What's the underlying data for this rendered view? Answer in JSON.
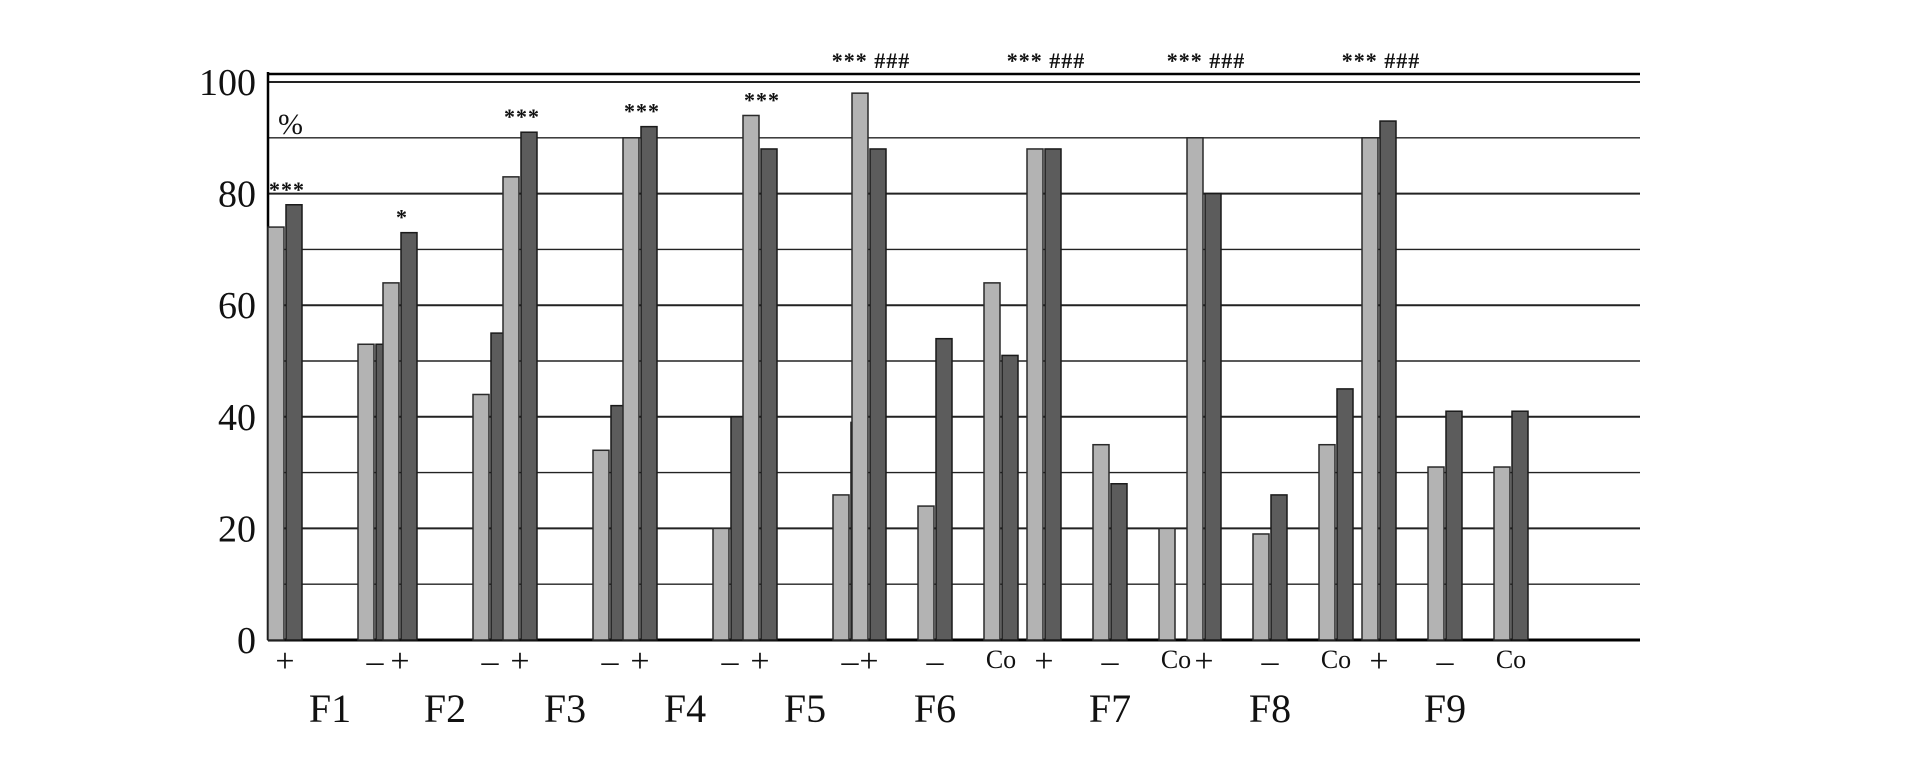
{
  "chart_data": {
    "type": "bar",
    "title": "",
    "xlabel": "",
    "ylabel": "%",
    "ylim": [
      0,
      100
    ],
    "yticks": [
      "0",
      "20",
      "40",
      "60",
      "80",
      "100"
    ],
    "colors": {
      "light": "#b3b3b3",
      "dark": "#5c5c5c",
      "axis": "#000000",
      "grid": "#222222"
    },
    "groups": [
      {
        "name": "F1",
        "bars": [
          {
            "label": "+",
            "light": 74,
            "dark": 78,
            "sig": "***"
          },
          {
            "label": "–",
            "light": 53,
            "dark": 53,
            "sig": ""
          }
        ]
      },
      {
        "name": "F2",
        "bars": [
          {
            "label": "+",
            "light": 64,
            "dark": 73,
            "sig": "*"
          },
          {
            "label": "–",
            "light": 44,
            "dark": 55,
            "sig": ""
          }
        ]
      },
      {
        "name": "F3",
        "bars": [
          {
            "label": "+",
            "light": 83,
            "dark": 91,
            "sig": "***"
          },
          {
            "label": "–",
            "light": 34,
            "dark": 42,
            "sig": ""
          }
        ]
      },
      {
        "name": "F4",
        "bars": [
          {
            "label": "+",
            "light": 90,
            "dark": 92,
            "sig": "***"
          },
          {
            "label": "–",
            "light": 20,
            "dark": 40,
            "sig": ""
          }
        ]
      },
      {
        "name": "F5",
        "bars": [
          {
            "label": "+",
            "light": 94,
            "dark": 88,
            "sig": "***"
          },
          {
            "label": "–",
            "light": 26,
            "dark": 39,
            "sig": ""
          }
        ]
      },
      {
        "name": "F6",
        "bars": [
          {
            "label": "+",
            "light": 98,
            "dark": 88,
            "sig": "*** ###"
          },
          {
            "label": "–",
            "light": 24,
            "dark": 54,
            "sig": ""
          },
          {
            "label": "Co",
            "light": 64,
            "dark": 51,
            "sig": ""
          }
        ]
      },
      {
        "name": "F7",
        "bars": [
          {
            "label": "+",
            "light": 88,
            "dark": 88,
            "sig": "*** ###"
          },
          {
            "label": "–",
            "light": 35,
            "dark": 28,
            "sig": ""
          },
          {
            "label": "Co",
            "light": 20,
            "dark": null,
            "sig": ""
          }
        ]
      },
      {
        "name": "F8",
        "bars": [
          {
            "label": "+",
            "light": 90,
            "dark": 80,
            "sig": "*** ###"
          },
          {
            "label": "–",
            "light": 19,
            "dark": 26,
            "sig": ""
          },
          {
            "label": "Co",
            "light": 35,
            "dark": 45,
            "sig": ""
          }
        ]
      },
      {
        "name": "F9",
        "bars": [
          {
            "label": "+",
            "light": 90,
            "dark": 93,
            "sig": "*** ###"
          },
          {
            "label": "–",
            "light": 31,
            "dark": 41,
            "sig": ""
          },
          {
            "label": "Co",
            "light": 31,
            "dark": 41,
            "sig": ""
          }
        ]
      }
    ]
  }
}
